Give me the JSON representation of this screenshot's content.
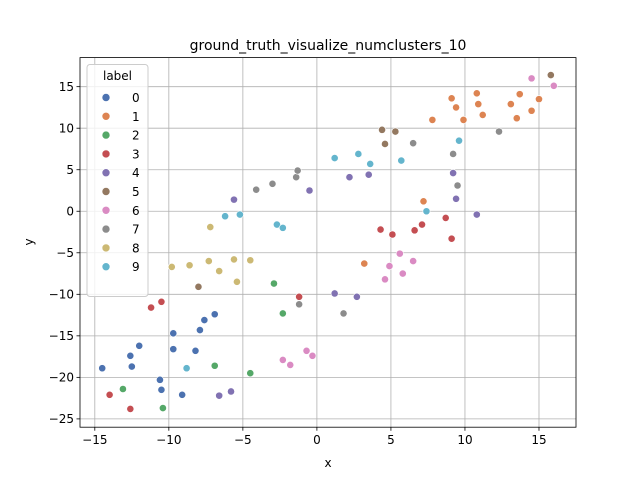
{
  "chart_data": {
    "type": "scatter",
    "title": "ground_truth_visualize_numclusters_10",
    "xlabel": "x",
    "ylabel": "y",
    "xlim": [
      -16,
      17.5
    ],
    "ylim": [
      -26,
      18.5
    ],
    "xticks": [
      -15,
      -10,
      -5,
      0,
      5,
      10,
      15
    ],
    "xtick_labels": [
      "−15",
      "−10",
      "−5",
      "0",
      "5",
      "10",
      "15"
    ],
    "yticks": [
      -25,
      -20,
      -15,
      -10,
      -5,
      0,
      5,
      10,
      15
    ],
    "ytick_labels": [
      "−25",
      "−20",
      "−15",
      "−10",
      "−5",
      "0",
      "5",
      "10",
      "15"
    ],
    "grid": true,
    "legend": {
      "title": "label",
      "placement": "top-left"
    },
    "series": [
      {
        "name": "0",
        "color": "#4c72b0",
        "points": [
          [
            -14.5,
            -18.9
          ],
          [
            -12.6,
            -17.4
          ],
          [
            -12.5,
            -18.7
          ],
          [
            -12.0,
            -16.2
          ],
          [
            -10.6,
            -20.3
          ],
          [
            -10.5,
            -21.5
          ],
          [
            -9.7,
            -14.7
          ],
          [
            -9.7,
            -16.6
          ],
          [
            -9.1,
            -22.1
          ],
          [
            -8.2,
            -16.8
          ],
          [
            -7.9,
            -14.3
          ],
          [
            -7.6,
            -13.1
          ],
          [
            -6.9,
            -12.4
          ]
        ]
      },
      {
        "name": "1",
        "color": "#dd8452",
        "points": [
          [
            3.2,
            -6.3
          ],
          [
            7.2,
            1.2
          ],
          [
            7.8,
            11.0
          ],
          [
            9.1,
            13.6
          ],
          [
            9.4,
            12.5
          ],
          [
            9.9,
            11.0
          ],
          [
            10.8,
            14.2
          ],
          [
            10.9,
            12.9
          ],
          [
            11.2,
            11.6
          ],
          [
            13.1,
            12.9
          ],
          [
            13.5,
            11.2
          ],
          [
            13.7,
            14.1
          ],
          [
            14.5,
            12.1
          ],
          [
            15.0,
            13.5
          ]
        ]
      },
      {
        "name": "2",
        "color": "#55a868",
        "points": [
          [
            -13.1,
            -21.4
          ],
          [
            -10.4,
            -23.7
          ],
          [
            -6.9,
            -18.6
          ],
          [
            -4.5,
            -19.5
          ],
          [
            -2.9,
            -8.7
          ],
          [
            -2.3,
            -12.3
          ]
        ]
      },
      {
        "name": "3",
        "color": "#c44e52",
        "points": [
          [
            -14.0,
            -22.1
          ],
          [
            -12.6,
            -23.8
          ],
          [
            -11.2,
            -11.6
          ],
          [
            -10.5,
            -10.9
          ],
          [
            -1.2,
            -10.3
          ],
          [
            4.3,
            -2.2
          ],
          [
            5.1,
            -2.8
          ],
          [
            6.6,
            -2.3
          ],
          [
            7.1,
            -1.6
          ],
          [
            8.7,
            -0.8
          ],
          [
            9.1,
            -3.3
          ]
        ]
      },
      {
        "name": "4",
        "color": "#8172b2",
        "points": [
          [
            -6.6,
            -22.2
          ],
          [
            -5.8,
            -21.7
          ],
          [
            -5.6,
            1.4
          ],
          [
            -0.5,
            2.5
          ],
          [
            1.2,
            -9.9
          ],
          [
            2.2,
            4.1
          ],
          [
            2.7,
            -10.3
          ],
          [
            3.5,
            4.4
          ],
          [
            9.2,
            4.6
          ],
          [
            9.4,
            1.5
          ],
          [
            10.8,
            -0.4
          ]
        ]
      },
      {
        "name": "5",
        "color": "#937860",
        "points": [
          [
            -8.0,
            -9.1
          ],
          [
            4.4,
            9.8
          ],
          [
            4.6,
            8.1
          ],
          [
            5.3,
            9.6
          ],
          [
            15.8,
            16.4
          ]
        ]
      },
      {
        "name": "6",
        "color": "#da8bc3",
        "points": [
          [
            -2.3,
            -17.9
          ],
          [
            -1.8,
            -18.5
          ],
          [
            -0.7,
            -16.8
          ],
          [
            -0.3,
            -17.4
          ],
          [
            4.6,
            -8.2
          ],
          [
            4.9,
            -6.6
          ],
          [
            5.6,
            -5.1
          ],
          [
            5.8,
            -7.5
          ],
          [
            6.5,
            -6.0
          ],
          [
            14.5,
            16.0
          ],
          [
            16.0,
            15.1
          ]
        ]
      },
      {
        "name": "7",
        "color": "#8c8c8c",
        "points": [
          [
            -4.1,
            2.6
          ],
          [
            -3.0,
            3.3
          ],
          [
            -1.4,
            4.1
          ],
          [
            -1.3,
            4.9
          ],
          [
            -1.2,
            -11.2
          ],
          [
            1.8,
            -12.3
          ],
          [
            6.5,
            8.2
          ],
          [
            9.2,
            6.9
          ],
          [
            9.5,
            3.1
          ],
          [
            12.3,
            9.6
          ]
        ]
      },
      {
        "name": "8",
        "color": "#ccb974",
        "points": [
          [
            -9.8,
            -6.7
          ],
          [
            -8.6,
            -6.5
          ],
          [
            -7.3,
            -6.0
          ],
          [
            -7.2,
            -1.9
          ],
          [
            -6.6,
            -7.2
          ],
          [
            -5.6,
            -5.8
          ],
          [
            -5.4,
            -8.5
          ],
          [
            -4.5,
            -5.9
          ]
        ]
      },
      {
        "name": "9",
        "color": "#64b5cd",
        "points": [
          [
            -8.8,
            -18.9
          ],
          [
            -6.2,
            -0.6
          ],
          [
            -5.2,
            -0.4
          ],
          [
            -2.7,
            -1.6
          ],
          [
            -2.3,
            -2.0
          ],
          [
            1.2,
            6.4
          ],
          [
            2.8,
            6.9
          ],
          [
            3.6,
            5.7
          ],
          [
            5.7,
            6.1
          ],
          [
            7.4,
            0.0
          ],
          [
            9.6,
            8.5
          ]
        ]
      }
    ]
  }
}
